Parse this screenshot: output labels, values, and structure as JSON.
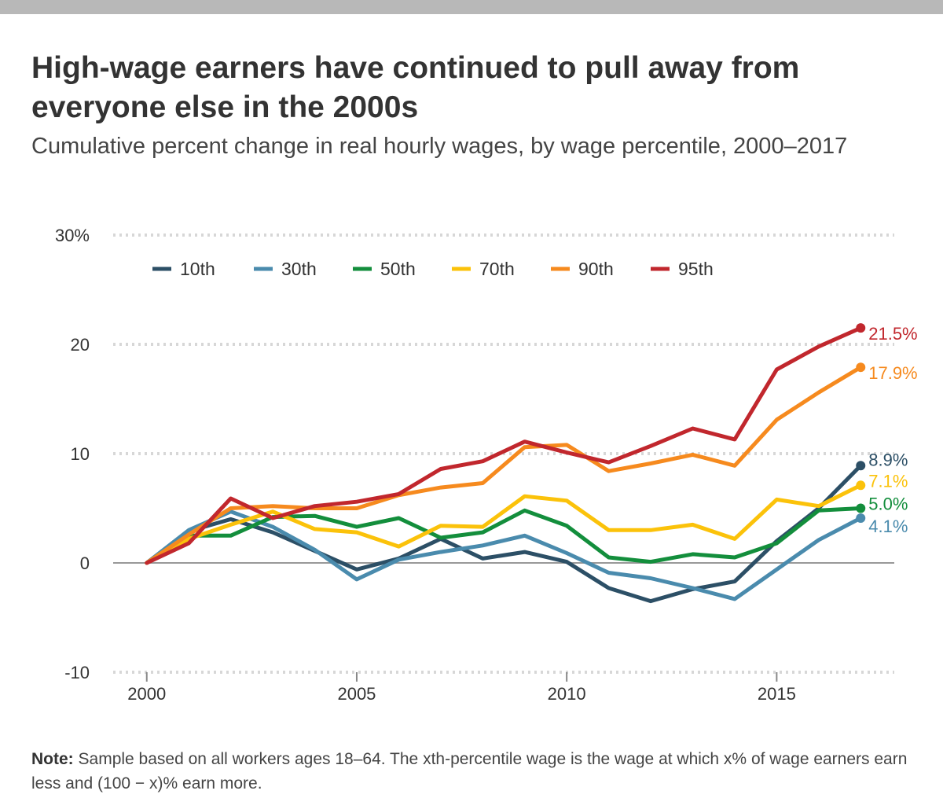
{
  "header": {
    "title": "High-wage earners have continued to pull away from everyone else in the 2000s",
    "subtitle": "Cumulative percent change in real hourly wages, by wage percentile, 2000–2017"
  },
  "note": {
    "label": "Note:",
    "text": "Sample based on all workers ages 18–64. The xth-percentile wage is the wage at which x% of wage earners earn less and (100 − x)% earn more."
  },
  "chart_data": {
    "type": "line",
    "x": [
      2000,
      2001,
      2002,
      2003,
      2004,
      2005,
      2006,
      2007,
      2008,
      2009,
      2010,
      2011,
      2012,
      2013,
      2014,
      2015,
      2016,
      2017
    ],
    "xlim": [
      1999.2,
      2017.8
    ],
    "ylim": [
      -10,
      30
    ],
    "x_ticks": [
      2000,
      2005,
      2010,
      2015
    ],
    "x_tick_labels": [
      "2000",
      "2005",
      "2010",
      "2015"
    ],
    "y_ticks": [
      -10,
      0,
      10,
      20,
      30
    ],
    "y_tick_labels": [
      "-10",
      "0",
      "10",
      "20",
      "30%"
    ],
    "grid": true,
    "legend_position": "top-left",
    "series": [
      {
        "name": "10th",
        "color": "#2c4f66",
        "end_label": "8.9%",
        "values": [
          0,
          2.9,
          4.0,
          2.8,
          1.1,
          -0.6,
          0.4,
          2.2,
          0.4,
          1.0,
          0.1,
          -2.3,
          -3.5,
          -2.4,
          -1.7,
          2.0,
          5.0,
          8.9
        ]
      },
      {
        "name": "30th",
        "color": "#4a8bad",
        "end_label": "4.1%",
        "values": [
          0,
          3.0,
          4.7,
          3.3,
          1.2,
          -1.5,
          0.3,
          1.0,
          1.6,
          2.5,
          0.9,
          -0.9,
          -1.4,
          -2.3,
          -3.3,
          -0.6,
          2.1,
          4.1
        ]
      },
      {
        "name": "50th",
        "color": "#138e3c",
        "end_label": "5.0%",
        "values": [
          0,
          2.5,
          2.5,
          4.2,
          4.3,
          3.3,
          4.1,
          2.3,
          2.8,
          4.8,
          3.4,
          0.5,
          0.1,
          0.8,
          0.5,
          1.8,
          4.8,
          5.0
        ]
      },
      {
        "name": "70th",
        "color": "#fbc20a",
        "end_label": "7.1%",
        "values": [
          0,
          2.2,
          3.5,
          4.7,
          3.1,
          2.8,
          1.5,
          3.4,
          3.3,
          6.1,
          5.7,
          3.0,
          3.0,
          3.5,
          2.2,
          5.8,
          5.2,
          7.1
        ]
      },
      {
        "name": "90th",
        "color": "#f68a1e",
        "end_label": "17.9%",
        "values": [
          0,
          2.6,
          5.0,
          5.2,
          5.0,
          5.0,
          6.2,
          6.9,
          7.3,
          10.6,
          10.8,
          8.4,
          9.1,
          9.9,
          8.9,
          13.1,
          15.6,
          17.9
        ]
      },
      {
        "name": "95th",
        "color": "#c1272d",
        "end_label": "21.5%",
        "values": [
          0,
          1.8,
          5.9,
          4.1,
          5.2,
          5.6,
          6.3,
          8.6,
          9.3,
          11.1,
          10.1,
          9.2,
          10.7,
          12.3,
          11.3,
          17.7,
          19.8,
          21.5
        ]
      }
    ]
  }
}
